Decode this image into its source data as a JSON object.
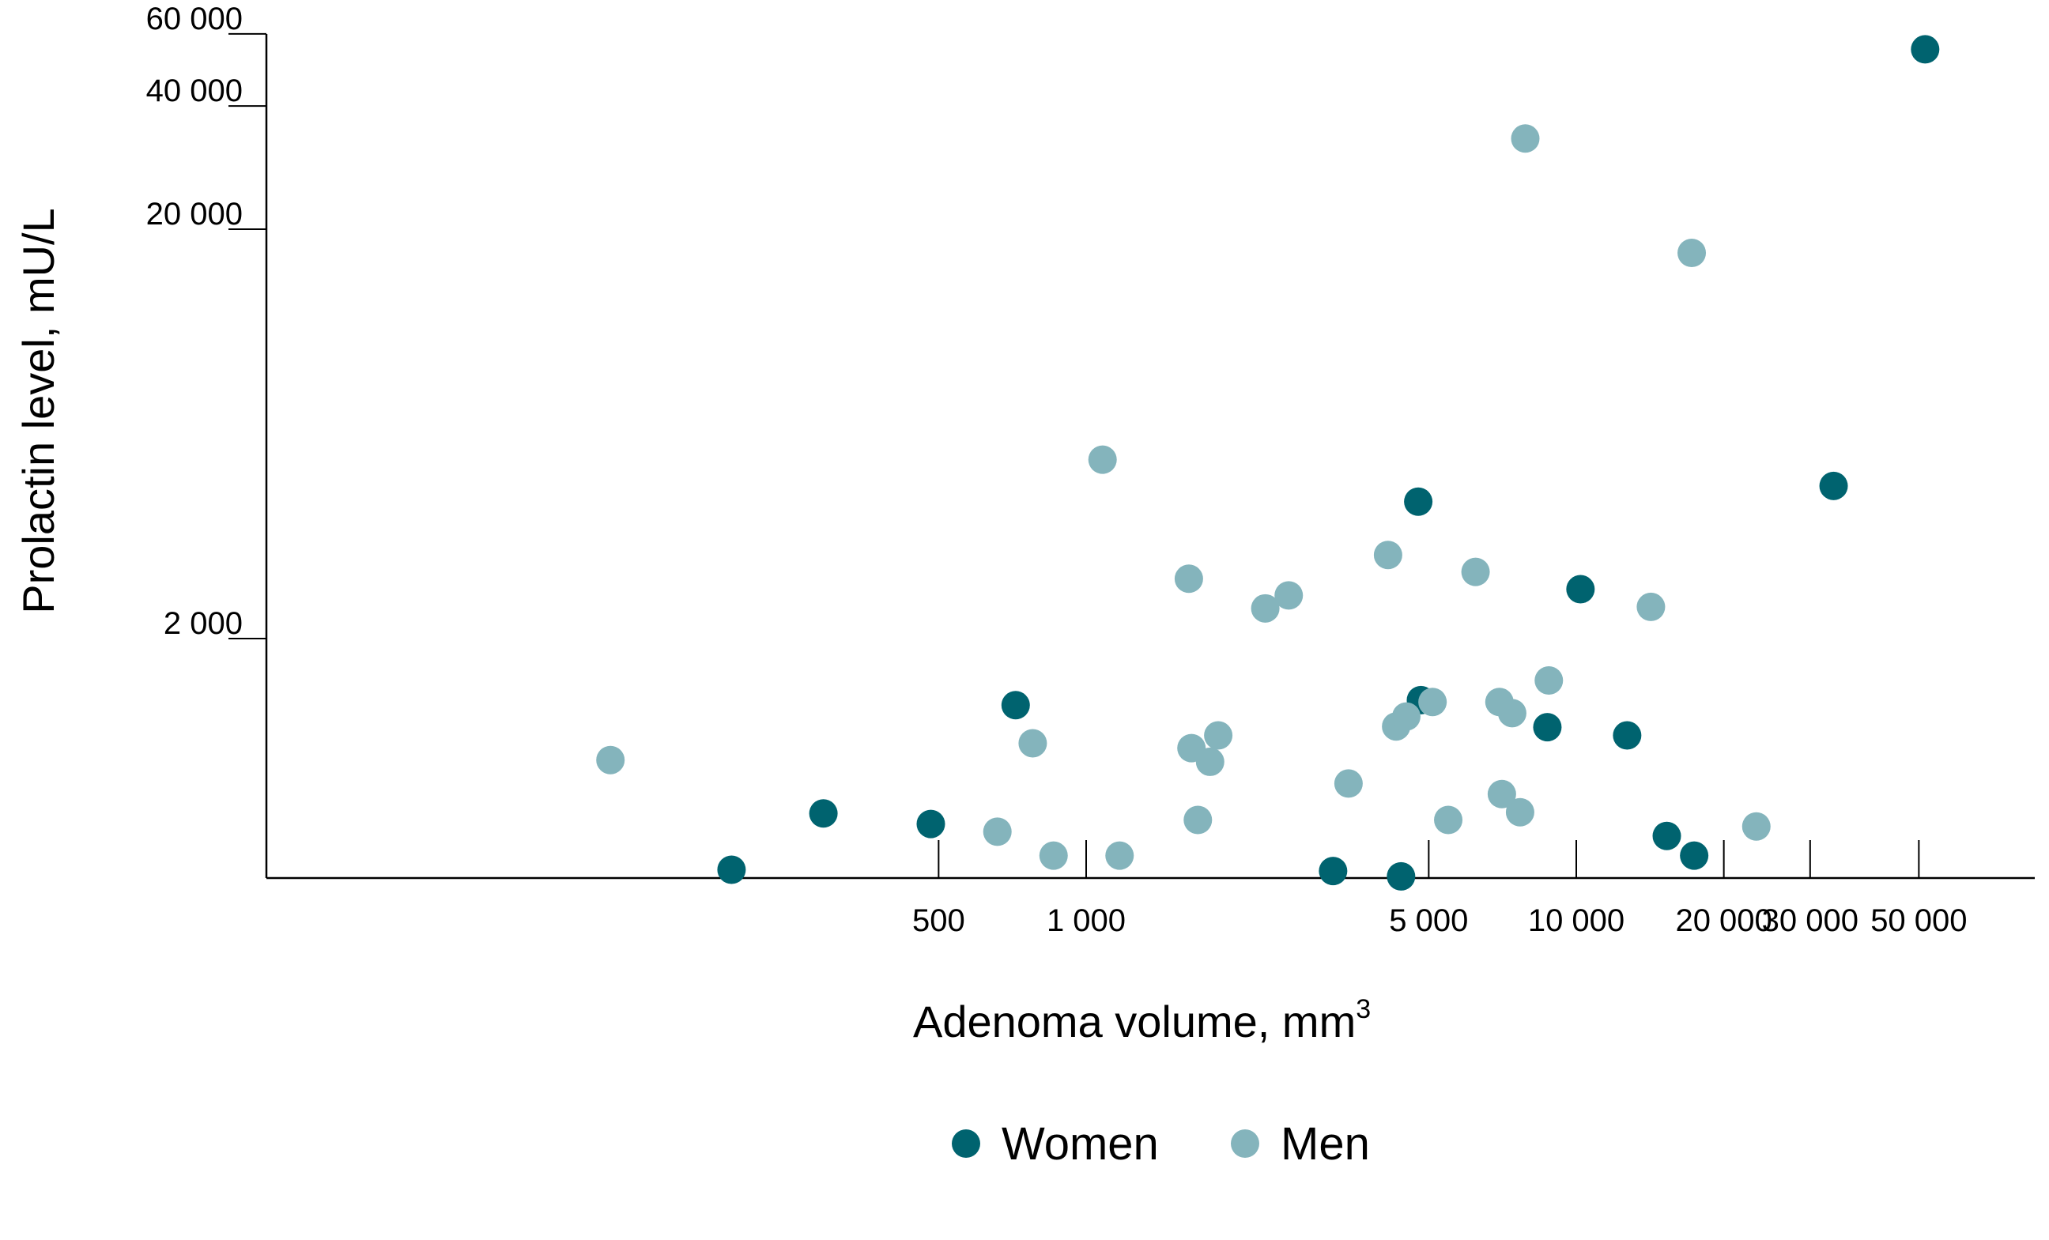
{
  "chart_data": {
    "type": "scatter",
    "xlabel": "Adenoma volume, mm",
    "xlabel_sup": "3",
    "ylabel": "Prolactin level, mU/L",
    "x_scale": "log",
    "y_scale": "log",
    "xlim": [
      21,
      86000
    ],
    "ylim": [
      520,
      60000
    ],
    "x_ticks": [
      {
        "value": 500,
        "label": "500"
      },
      {
        "value": 1000,
        "label": "1 000"
      },
      {
        "value": 5000,
        "label": "5 000"
      },
      {
        "value": 10000,
        "label": "10 000"
      },
      {
        "value": 20000,
        "label": "20 000"
      },
      {
        "value": 30000,
        "label": "30 000"
      },
      {
        "value": 50000,
        "label": "50 000"
      }
    ],
    "y_ticks": [
      {
        "value": 2000,
        "label": "2 000"
      },
      {
        "value": 20000,
        "label": "20 000"
      },
      {
        "value": 40000,
        "label": "40 000"
      },
      {
        "value": 60000,
        "label": "60 000"
      }
    ],
    "grid": false,
    "legend_position": "bottom-center",
    "series": [
      {
        "name": "Women",
        "color": "#00636f",
        "points": [
          [
            51500,
            55000
          ],
          [
            33500,
            4720
          ],
          [
            4760,
            4320
          ],
          [
            10200,
            2640
          ],
          [
            718,
            1375
          ],
          [
            4820,
            1415
          ],
          [
            8730,
            1215
          ],
          [
            12700,
            1160
          ],
          [
            291,
            748
          ],
          [
            482,
            705
          ],
          [
            189,
            545
          ],
          [
            3190,
            541
          ],
          [
            4390,
            525
          ],
          [
            15300,
            659
          ],
          [
            17400,
            590
          ]
        ]
      },
      {
        "name": "Men",
        "color": "#84b4bc",
        "points": [
          [
            7870,
            33300
          ],
          [
            17200,
            17500
          ],
          [
            1080,
            5470
          ],
          [
            1620,
            2800
          ],
          [
            4130,
            3200
          ],
          [
            6230,
            2910
          ],
          [
            2320,
            2370
          ],
          [
            2590,
            2550
          ],
          [
            14200,
            2390
          ],
          [
            8790,
            1580
          ],
          [
            5090,
            1400
          ],
          [
            6970,
            1400
          ],
          [
            7400,
            1315
          ],
          [
            4290,
            1220
          ],
          [
            4500,
            1290
          ],
          [
            1860,
            1160
          ],
          [
            1640,
            1080
          ],
          [
            1790,
            1000
          ],
          [
            778,
            1110
          ],
          [
            107,
            1010
          ],
          [
            3430,
            885
          ],
          [
            7050,
            834
          ],
          [
            7680,
            753
          ],
          [
            5480,
            721
          ],
          [
            1690,
            721
          ],
          [
            659,
            675
          ],
          [
            23300,
            695
          ],
          [
            858,
            590
          ],
          [
            1170,
            590
          ]
        ]
      }
    ]
  }
}
